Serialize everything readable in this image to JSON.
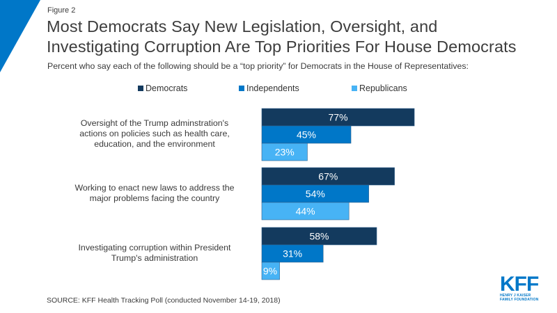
{
  "figure_label": "Figure 2",
  "title_line1": "Most Democrats Say New Legislation, Oversight, and",
  "title_line2": "Investigating Corruption Are Top Priorities For House Democrats",
  "subtitle": "Percent who say each of the following should be a “top priority” for Democrats in the House of Representatives:",
  "source": "SOURCE: KFF Health Tracking Poll (conducted November 14-19, 2018)",
  "logo": {
    "mark": "KFF",
    "line1": "HENRY J KAISER",
    "line2": "FAMILY FOUNDATION"
  },
  "colors": {
    "democrats": "#133a5e",
    "independents": "#0077c8",
    "republicans": "#47b3f5",
    "accent": "#0077c8"
  },
  "chart_data": {
    "type": "bar",
    "orientation": "horizontal",
    "title": "Most Democrats Say New Legislation, Oversight, and Investigating Corruption Are Top Priorities For House Democrats",
    "subtitle": "Percent who say each of the following should be a “top priority” for Democrats in the House of Representatives:",
    "categories": [
      "Oversight of the Trump adminstration's actions on policies such as health care, education, and the environment",
      "Working to enact new laws to address the major problems facing the country",
      "Investigating corruption within President Trump's administration"
    ],
    "category_lines": [
      [
        "Oversight of the Trump adminstration's",
        "actions on policies such as health care,",
        "education, and the environment"
      ],
      [
        "Working to enact new laws to address the",
        "major problems facing the country"
      ],
      [
        "Investigating corruption within President",
        "Trump's administration"
      ]
    ],
    "series": [
      {
        "name": "Democrats",
        "color": "#133a5e",
        "values": [
          77,
          67,
          58
        ]
      },
      {
        "name": "Independents",
        "color": "#0077c8",
        "values": [
          45,
          54,
          31
        ]
      },
      {
        "name": "Republicans",
        "color": "#47b3f5",
        "values": [
          23,
          44,
          9
        ]
      }
    ],
    "value_suffix": "%",
    "xlim": [
      0,
      100
    ],
    "grid": false,
    "legend_position": "top",
    "xlabel": "",
    "ylabel": ""
  }
}
